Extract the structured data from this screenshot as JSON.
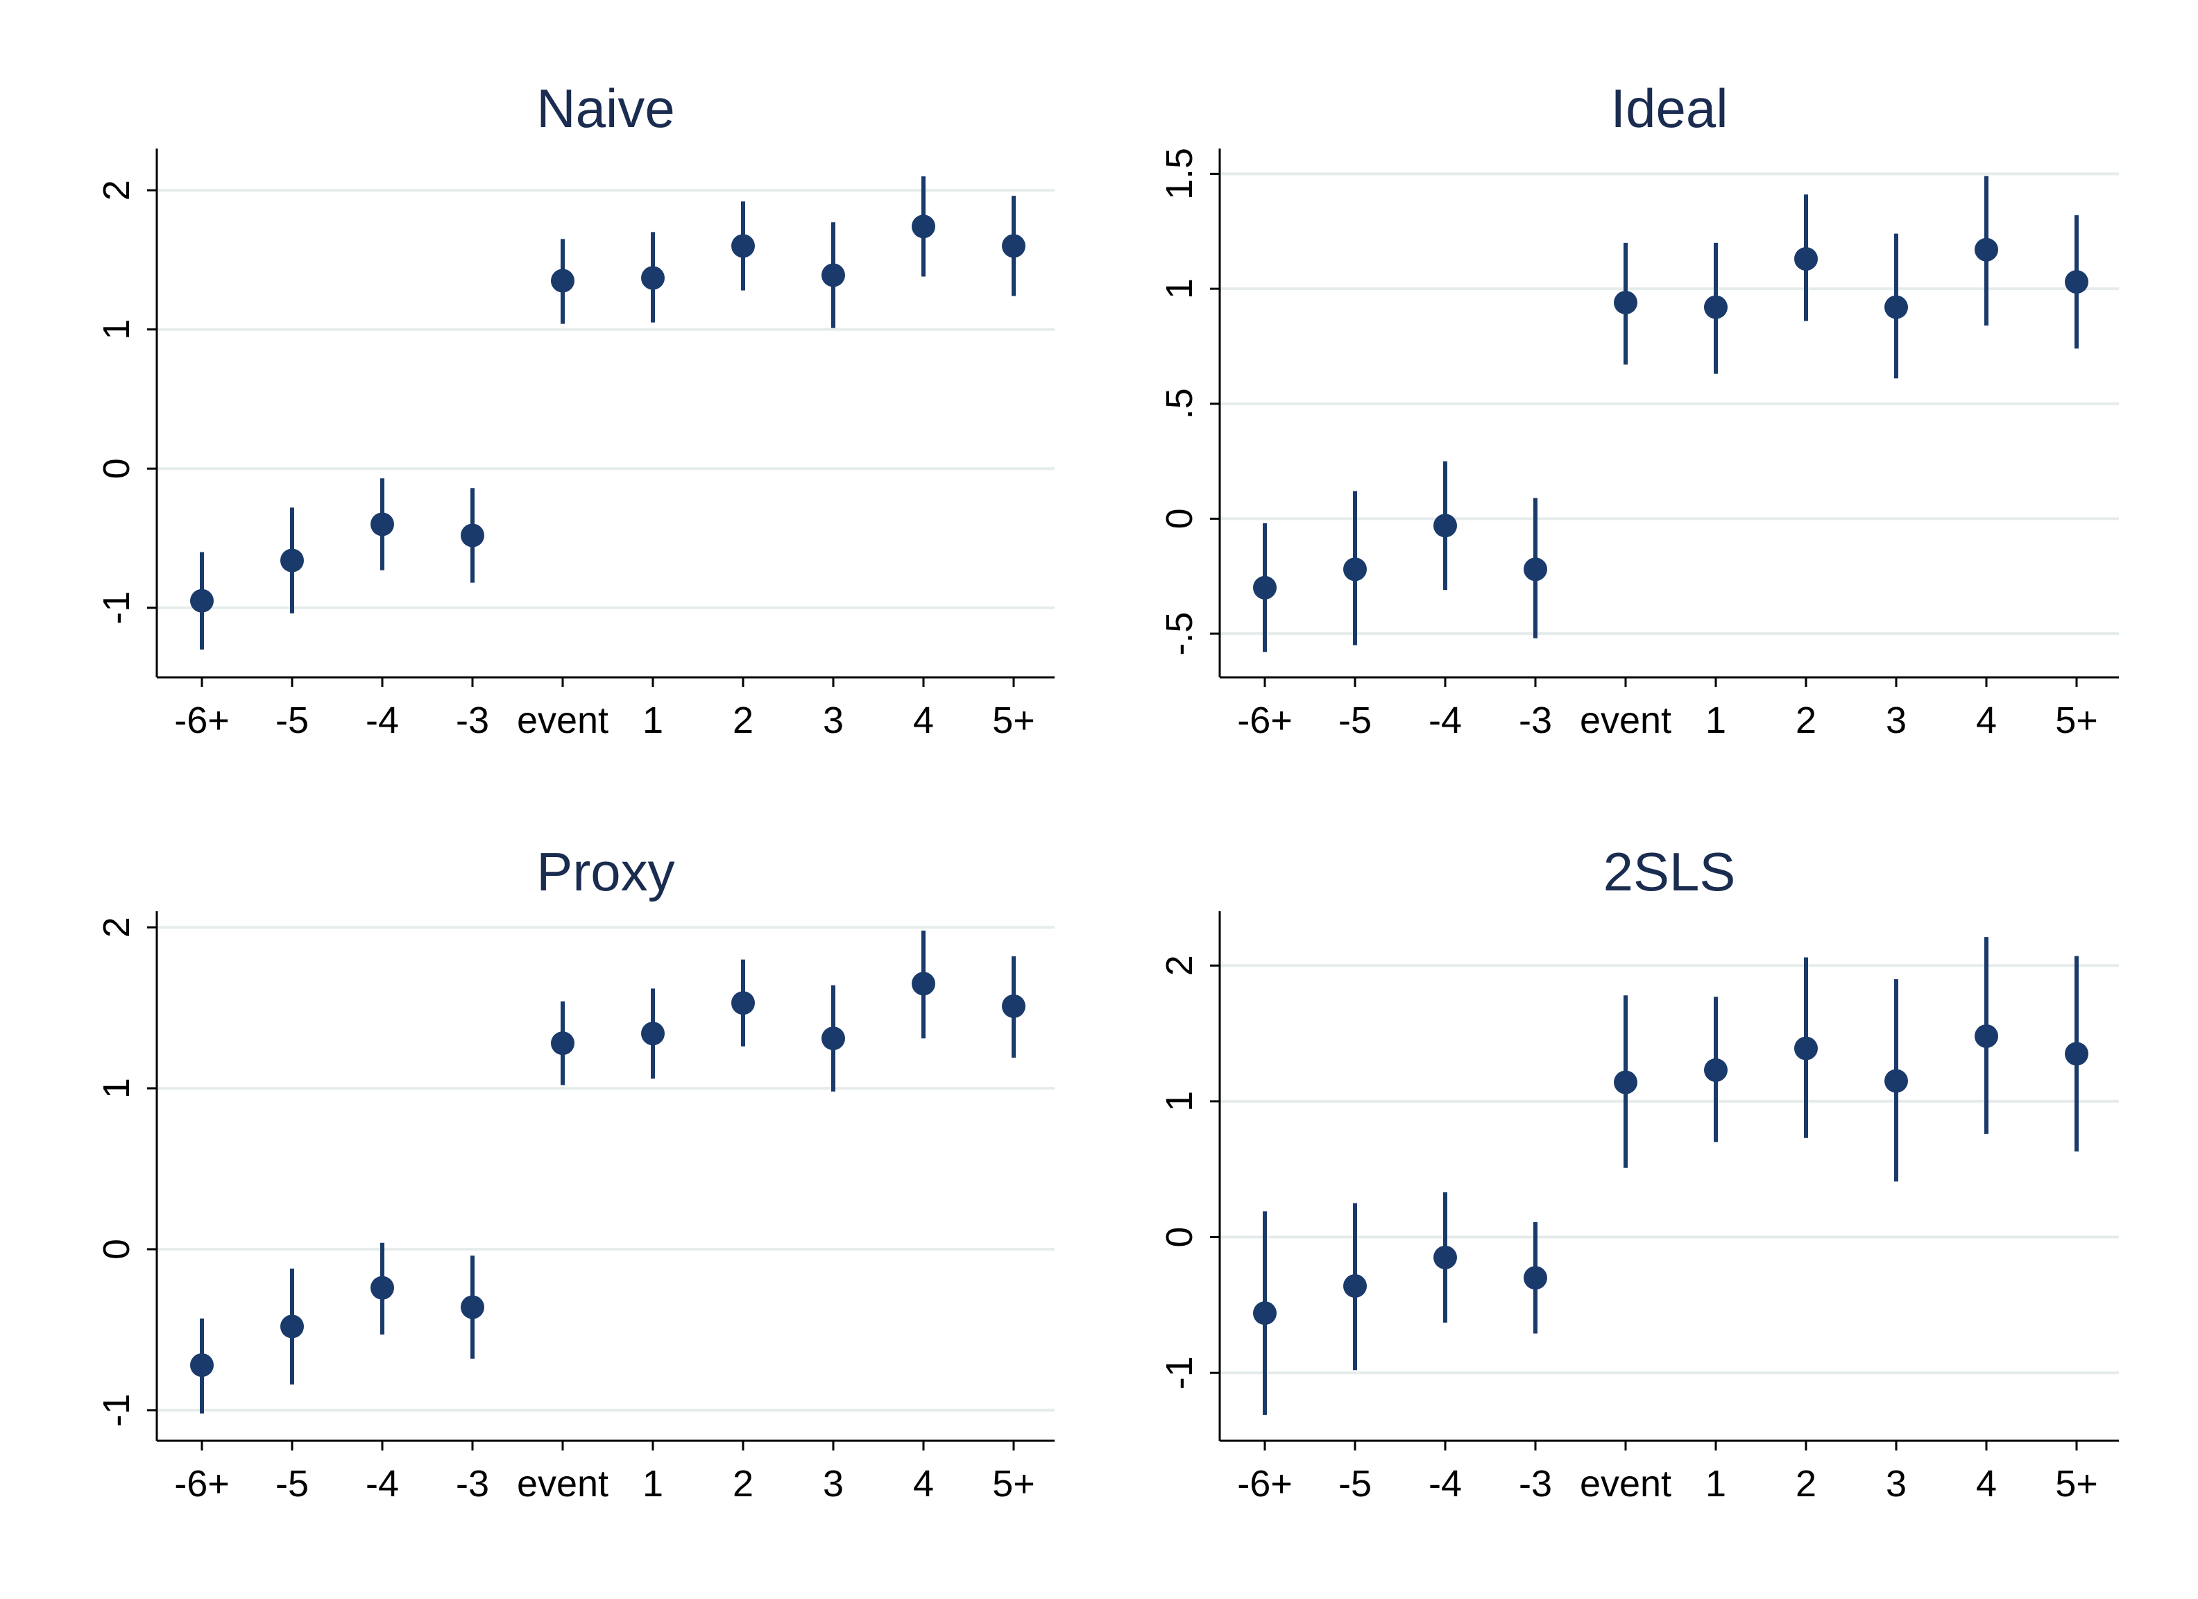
{
  "colors": {
    "marker": "#1a3a6b",
    "title": "#1a2c4f",
    "grid": "#e6ecec"
  },
  "chart_data": [
    {
      "type": "scatter",
      "title": "Naive",
      "categories": [
        "-6+",
        "-5",
        "-4",
        "-3",
        "event",
        "1",
        "2",
        "3",
        "4",
        "5+"
      ],
      "x_positions": [
        -6,
        -5,
        -4,
        -3,
        -2,
        -1,
        0,
        1,
        2,
        3
      ],
      "series": [
        {
          "estimate": [
            -0.95,
            -0.66,
            -0.4,
            -0.48,
            1.35,
            1.37,
            1.6,
            1.39,
            1.74,
            1.6
          ],
          "ci_low": [
            -1.3,
            -1.04,
            -0.73,
            -0.82,
            1.04,
            1.05,
            1.28,
            1.01,
            1.38,
            1.24
          ],
          "ci_high": [
            -0.6,
            -0.28,
            -0.07,
            -0.14,
            1.65,
            1.7,
            1.92,
            1.77,
            2.1,
            1.96
          ]
        }
      ],
      "yticks": [
        -1,
        0,
        1,
        2
      ],
      "ytick_labels": [
        "-1",
        "0",
        "1",
        "2"
      ],
      "ylim": [
        -1.5,
        2.3
      ],
      "grid": true
    },
    {
      "type": "scatter",
      "title": "Ideal",
      "categories": [
        "-6+",
        "-5",
        "-4",
        "-3",
        "event",
        "1",
        "2",
        "3",
        "4",
        "5+"
      ],
      "x_positions": [
        -6,
        -5,
        -4,
        -3,
        -2,
        -1,
        0,
        1,
        2,
        3
      ],
      "series": [
        {
          "estimate": [
            -0.3,
            -0.22,
            -0.03,
            -0.22,
            0.94,
            0.92,
            1.13,
            0.92,
            1.17,
            1.03
          ],
          "ci_low": [
            -0.58,
            -0.55,
            -0.31,
            -0.52,
            0.67,
            0.63,
            0.86,
            0.61,
            0.84,
            0.74
          ],
          "ci_high": [
            -0.02,
            0.12,
            0.25,
            0.09,
            1.2,
            1.2,
            1.41,
            1.24,
            1.49,
            1.32
          ]
        }
      ],
      "yticks": [
        -0.5,
        0,
        0.5,
        1,
        1.5
      ],
      "ytick_labels": [
        "-.5",
        "0",
        ".5",
        "1",
        "1.5"
      ],
      "ylim": [
        -0.69,
        1.61
      ],
      "grid": true
    },
    {
      "type": "scatter",
      "title": "Proxy",
      "categories": [
        "-6+",
        "-5",
        "-4",
        "-3",
        "event",
        "1",
        "2",
        "3",
        "4",
        "5+"
      ],
      "x_positions": [
        -6,
        -5,
        -4,
        -3,
        -2,
        -1,
        0,
        1,
        2,
        3
      ],
      "series": [
        {
          "estimate": [
            -0.72,
            -0.48,
            -0.24,
            -0.36,
            1.28,
            1.34,
            1.53,
            1.31,
            1.65,
            1.51
          ],
          "ci_low": [
            -1.02,
            -0.84,
            -0.53,
            -0.68,
            1.02,
            1.06,
            1.26,
            0.98,
            1.31,
            1.19
          ],
          "ci_high": [
            -0.43,
            -0.12,
            0.04,
            -0.04,
            1.54,
            1.62,
            1.8,
            1.64,
            1.98,
            1.82
          ]
        }
      ],
      "yticks": [
        -1,
        0,
        1,
        2
      ],
      "ytick_labels": [
        "-1",
        "0",
        "1",
        "2"
      ],
      "ylim": [
        -1.19,
        2.1
      ],
      "grid": true
    },
    {
      "type": "scatter",
      "title": "2SLS",
      "categories": [
        "-6+",
        "-5",
        "-4",
        "-3",
        "event",
        "1",
        "2",
        "3",
        "4",
        "5+"
      ],
      "x_positions": [
        -6,
        -5,
        -4,
        -3,
        -2,
        -1,
        0,
        1,
        2,
        3
      ],
      "series": [
        {
          "estimate": [
            -0.56,
            -0.36,
            -0.15,
            -0.3,
            1.14,
            1.23,
            1.39,
            1.15,
            1.48,
            1.35
          ],
          "ci_low": [
            -1.31,
            -0.98,
            -0.63,
            -0.71,
            0.51,
            0.7,
            0.73,
            0.41,
            0.76,
            0.63
          ],
          "ci_high": [
            0.19,
            0.25,
            0.33,
            0.11,
            1.78,
            1.77,
            2.06,
            1.9,
            2.21,
            2.07
          ]
        }
      ],
      "yticks": [
        -1,
        0,
        1,
        2
      ],
      "ytick_labels": [
        "-1",
        "0",
        "1",
        "2"
      ],
      "ylim": [
        -1.5,
        2.4
      ],
      "grid": true
    }
  ]
}
